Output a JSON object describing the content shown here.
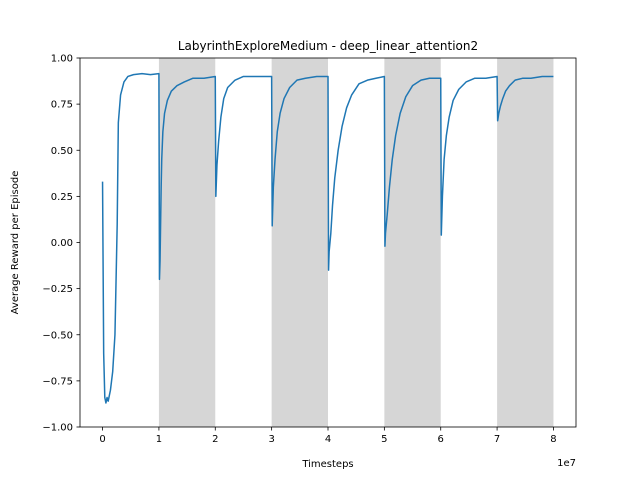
{
  "chart_data": {
    "type": "line",
    "title": "LabyrinthExploreMedium - deep_linear_attention2",
    "xlabel": "Timesteps",
    "ylabel": "Average Reward per Episode",
    "x_offset_label": "1e7",
    "xlim": [
      -0.4,
      8.4
    ],
    "ylim": [
      -1.0,
      1.0
    ],
    "x_ticks": [
      0,
      1,
      2,
      3,
      4,
      5,
      6,
      7,
      8
    ],
    "x_tick_labels": [
      "0",
      "1",
      "2",
      "3",
      "4",
      "5",
      "6",
      "7",
      "8"
    ],
    "y_ticks": [
      -1.0,
      -0.75,
      -0.5,
      -0.25,
      0.0,
      0.25,
      0.5,
      0.75,
      1.0
    ],
    "y_tick_labels": [
      "−1.00",
      "−0.75",
      "−0.50",
      "−0.25",
      "0.00",
      "0.25",
      "0.50",
      "0.75",
      "1.00"
    ],
    "grid": false,
    "shaded_regions": [
      [
        1,
        2
      ],
      [
        3,
        4
      ],
      [
        5,
        6
      ],
      [
        7,
        8
      ]
    ],
    "shade_color": "#d6d6d6",
    "series": [
      {
        "color": "#1f77b4",
        "points": [
          [
            0.0,
            0.33
          ],
          [
            0.02,
            -0.6
          ],
          [
            0.04,
            -0.84
          ],
          [
            0.06,
            -0.87
          ],
          [
            0.08,
            -0.84
          ],
          [
            0.1,
            -0.86
          ],
          [
            0.14,
            -0.8
          ],
          [
            0.18,
            -0.7
          ],
          [
            0.22,
            -0.5
          ],
          [
            0.26,
            0.1
          ],
          [
            0.28,
            0.65
          ],
          [
            0.32,
            0.8
          ],
          [
            0.38,
            0.87
          ],
          [
            0.45,
            0.9
          ],
          [
            0.55,
            0.91
          ],
          [
            0.7,
            0.915
          ],
          [
            0.85,
            0.91
          ],
          [
            1.0,
            0.915
          ],
          [
            1.01,
            -0.2
          ],
          [
            1.02,
            -0.1
          ],
          [
            1.04,
            0.3
          ],
          [
            1.05,
            0.45
          ],
          [
            1.07,
            0.6
          ],
          [
            1.1,
            0.7
          ],
          [
            1.15,
            0.77
          ],
          [
            1.22,
            0.82
          ],
          [
            1.32,
            0.85
          ],
          [
            1.45,
            0.87
          ],
          [
            1.6,
            0.89
          ],
          [
            1.8,
            0.89
          ],
          [
            2.0,
            0.9
          ],
          [
            2.01,
            0.25
          ],
          [
            2.03,
            0.42
          ],
          [
            2.06,
            0.55
          ],
          [
            2.1,
            0.68
          ],
          [
            2.15,
            0.78
          ],
          [
            2.22,
            0.84
          ],
          [
            2.35,
            0.88
          ],
          [
            2.5,
            0.9
          ],
          [
            2.7,
            0.9
          ],
          [
            2.85,
            0.9
          ],
          [
            3.0,
            0.9
          ],
          [
            3.01,
            0.09
          ],
          [
            3.03,
            0.3
          ],
          [
            3.06,
            0.45
          ],
          [
            3.1,
            0.6
          ],
          [
            3.15,
            0.7
          ],
          [
            3.22,
            0.78
          ],
          [
            3.32,
            0.84
          ],
          [
            3.45,
            0.88
          ],
          [
            3.6,
            0.89
          ],
          [
            3.8,
            0.9
          ],
          [
            4.0,
            0.9
          ],
          [
            4.01,
            -0.15
          ],
          [
            4.02,
            -0.05
          ],
          [
            4.05,
            0.05
          ],
          [
            4.08,
            0.2
          ],
          [
            4.12,
            0.35
          ],
          [
            4.18,
            0.5
          ],
          [
            4.25,
            0.63
          ],
          [
            4.33,
            0.73
          ],
          [
            4.42,
            0.8
          ],
          [
            4.55,
            0.86
          ],
          [
            4.7,
            0.88
          ],
          [
            4.85,
            0.89
          ],
          [
            5.0,
            0.9
          ],
          [
            5.01,
            -0.02
          ],
          [
            5.02,
            0.05
          ],
          [
            5.05,
            0.15
          ],
          [
            5.09,
            0.3
          ],
          [
            5.14,
            0.45
          ],
          [
            5.2,
            0.58
          ],
          [
            5.28,
            0.7
          ],
          [
            5.38,
            0.79
          ],
          [
            5.5,
            0.85
          ],
          [
            5.65,
            0.88
          ],
          [
            5.8,
            0.89
          ],
          [
            6.0,
            0.89
          ],
          [
            6.01,
            0.04
          ],
          [
            6.03,
            0.25
          ],
          [
            6.06,
            0.45
          ],
          [
            6.1,
            0.58
          ],
          [
            6.15,
            0.68
          ],
          [
            6.22,
            0.77
          ],
          [
            6.32,
            0.83
          ],
          [
            6.45,
            0.87
          ],
          [
            6.6,
            0.89
          ],
          [
            6.8,
            0.89
          ],
          [
            7.0,
            0.9
          ],
          [
            7.01,
            0.66
          ],
          [
            7.03,
            0.7
          ],
          [
            7.06,
            0.74
          ],
          [
            7.1,
            0.78
          ],
          [
            7.15,
            0.82
          ],
          [
            7.22,
            0.85
          ],
          [
            7.32,
            0.88
          ],
          [
            7.45,
            0.89
          ],
          [
            7.6,
            0.89
          ],
          [
            7.8,
            0.9
          ],
          [
            8.0,
            0.9
          ]
        ]
      }
    ]
  }
}
